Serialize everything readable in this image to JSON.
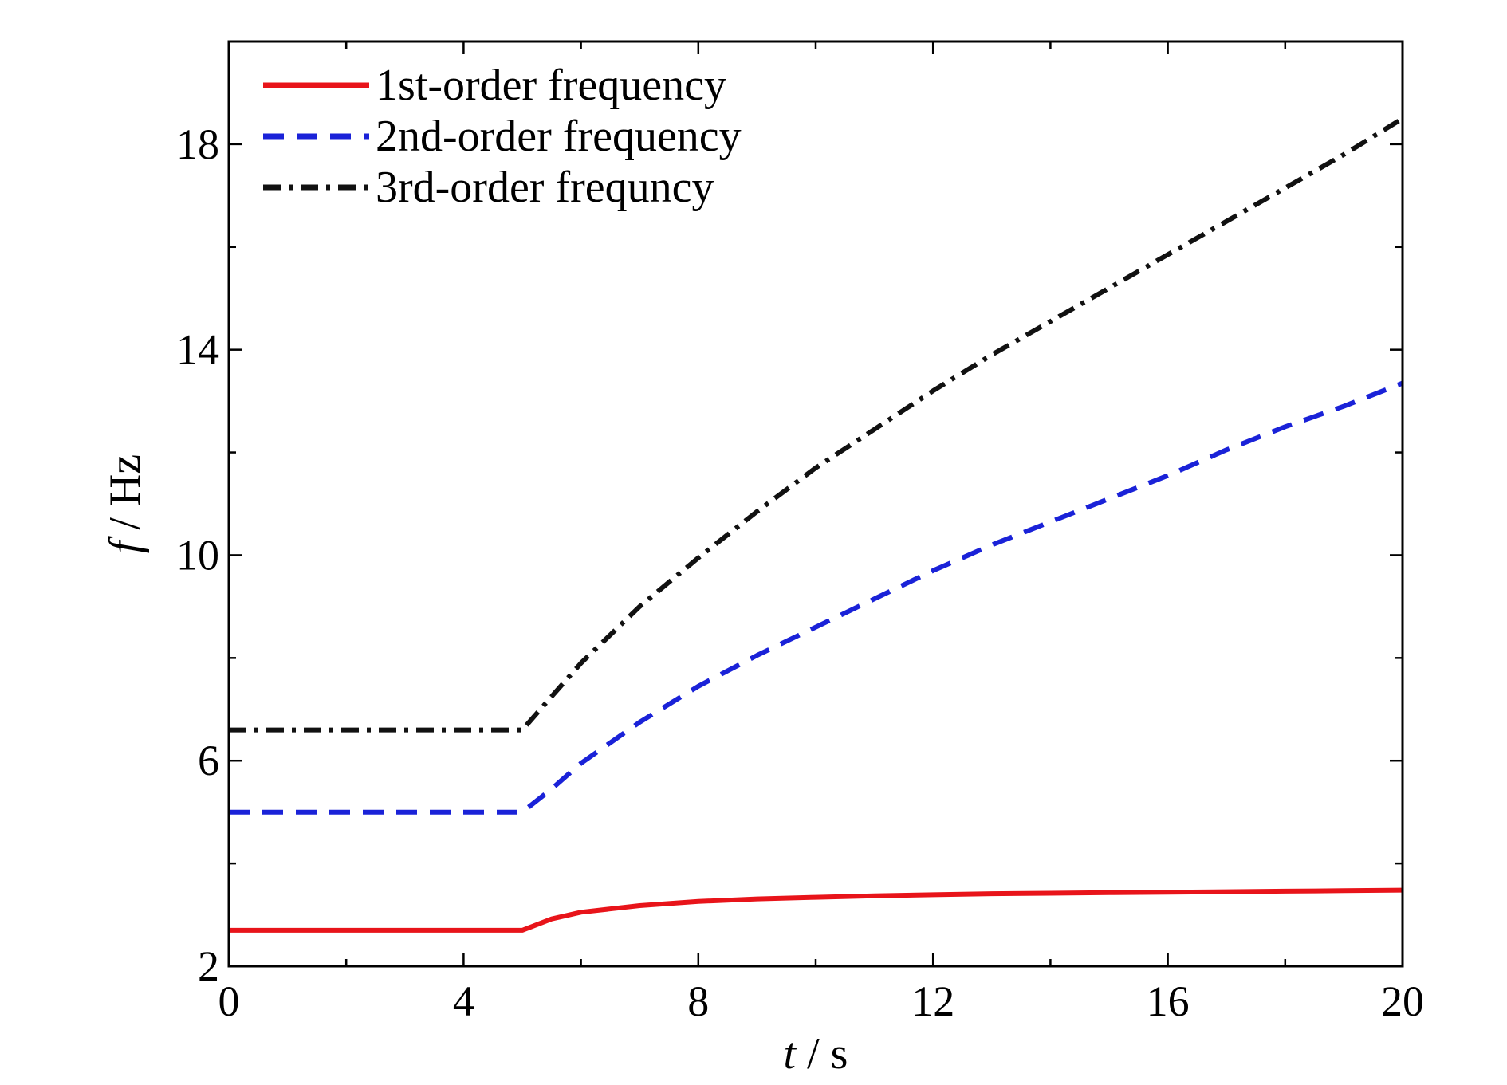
{
  "chart_data": {
    "type": "line",
    "title": "",
    "xlabel_var": "t",
    "xlabel_unit": "/ s",
    "ylabel_var": "f",
    "ylabel_unit": "/ Hz",
    "xlim": [
      0,
      20
    ],
    "ylim": [
      2,
      20
    ],
    "xticks": [
      0,
      4,
      8,
      12,
      16,
      20
    ],
    "xtick_labels": [
      "0",
      "4",
      "8",
      "12",
      "16",
      "20"
    ],
    "xminor_ticks": [
      2,
      6,
      10,
      14,
      18
    ],
    "yticks": [
      2,
      6,
      10,
      14,
      18
    ],
    "ytick_labels": [
      "2",
      "6",
      "10",
      "14",
      "18"
    ],
    "yminor_ticks": [
      4,
      8,
      12,
      16
    ],
    "grid": false,
    "legend_position": "top-left",
    "x": [
      0,
      1,
      2,
      3,
      4,
      5,
      5.5,
      6,
      7,
      8,
      9,
      10,
      11,
      12,
      13,
      14,
      15,
      16,
      17,
      18,
      19,
      20
    ],
    "series": [
      {
        "name": "1st-order frequency",
        "color": "#e8141a",
        "dash": "solid",
        "values": [
          2.7,
          2.7,
          2.7,
          2.7,
          2.7,
          2.7,
          2.92,
          3.05,
          3.18,
          3.26,
          3.31,
          3.34,
          3.37,
          3.39,
          3.41,
          3.42,
          3.43,
          3.44,
          3.45,
          3.46,
          3.47,
          3.48
        ]
      },
      {
        "name": "2nd-order frequency",
        "color": "#1a22d8",
        "dash": "dashed",
        "values": [
          5.0,
          5.0,
          5.0,
          5.0,
          5.0,
          5.0,
          5.45,
          5.95,
          6.75,
          7.45,
          8.05,
          8.6,
          9.15,
          9.7,
          10.2,
          10.65,
          11.1,
          11.55,
          12.05,
          12.5,
          12.9,
          13.35
        ]
      },
      {
        "name": "3rd-order frequncy",
        "color": "#111111",
        "dash": "dashdot",
        "values": [
          6.6,
          6.6,
          6.6,
          6.6,
          6.6,
          6.6,
          7.25,
          7.9,
          9.0,
          9.95,
          10.85,
          11.7,
          12.45,
          13.2,
          13.9,
          14.55,
          15.2,
          15.85,
          16.5,
          17.15,
          17.8,
          18.5
        ]
      }
    ]
  }
}
